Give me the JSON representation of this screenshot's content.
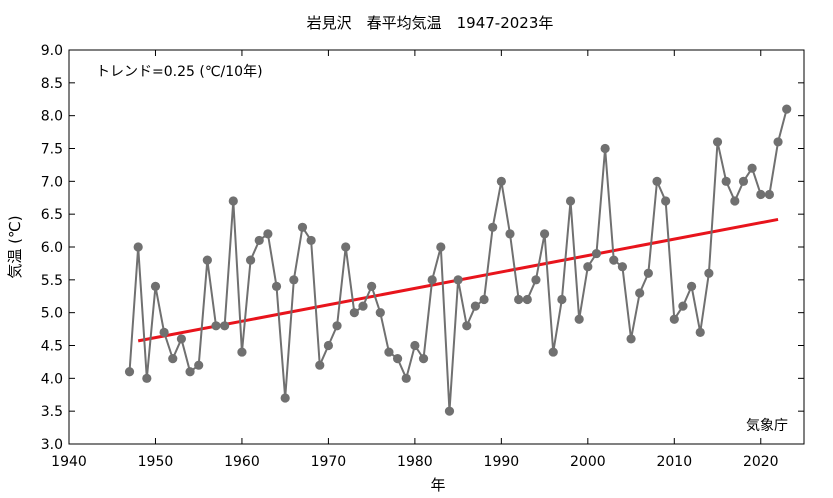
{
  "chart_data": {
    "type": "line",
    "title": "岩見沢　春平均気温　1947-2023年",
    "xlabel": "年",
    "ylabel": "気温 (℃)",
    "xlim": [
      1940,
      2025
    ],
    "ylim": [
      3.0,
      9.0
    ],
    "xticks": [
      1940,
      1950,
      1960,
      1970,
      1980,
      1990,
      2000,
      2010,
      2020
    ],
    "yticks": [
      3.0,
      3.5,
      4.0,
      4.5,
      5.0,
      5.5,
      6.0,
      6.5,
      7.0,
      7.5,
      8.0,
      8.5,
      9.0
    ],
    "grid": false,
    "annotations": {
      "trend_label": "トレンド=0.25 (℃/10年)",
      "credit": "気象庁"
    },
    "colors": {
      "series": "#707070",
      "trend": "#e8141c"
    },
    "series": {
      "x": [
        1947,
        1948,
        1949,
        1950,
        1951,
        1952,
        1953,
        1954,
        1955,
        1956,
        1957,
        1958,
        1959,
        1960,
        1961,
        1962,
        1963,
        1964,
        1965,
        1966,
        1967,
        1968,
        1969,
        1970,
        1971,
        1972,
        1973,
        1974,
        1975,
        1976,
        1977,
        1978,
        1979,
        1980,
        1981,
        1982,
        1983,
        1984,
        1985,
        1986,
        1987,
        1988,
        1989,
        1990,
        1991,
        1992,
        1993,
        1994,
        1995,
        1996,
        1997,
        1998,
        1999,
        2000,
        2001,
        2002,
        2003,
        2004,
        2005,
        2006,
        2007,
        2008,
        2009,
        2010,
        2011,
        2012,
        2013,
        2014,
        2015,
        2016,
        2017,
        2018,
        2019,
        2020,
        2021,
        2022,
        2023
      ],
      "values": [
        4.1,
        6.0,
        4.0,
        5.4,
        4.7,
        4.3,
        4.6,
        4.1,
        4.2,
        5.8,
        4.8,
        4.8,
        6.7,
        4.4,
        5.8,
        6.1,
        6.2,
        5.4,
        3.7,
        5.5,
        6.3,
        6.1,
        4.2,
        4.5,
        4.8,
        6.0,
        5.0,
        5.1,
        5.4,
        5.0,
        4.4,
        4.3,
        4.0,
        4.5,
        4.3,
        5.5,
        6.0,
        3.5,
        5.5,
        4.8,
        5.1,
        5.2,
        6.3,
        7.0,
        6.2,
        5.2,
        5.2,
        5.5,
        6.2,
        4.4,
        5.2,
        6.7,
        4.9,
        5.7,
        5.9,
        7.5,
        5.8,
        5.7,
        4.6,
        5.3,
        5.6,
        7.0,
        6.7,
        4.9,
        5.1,
        5.4,
        4.7,
        5.6,
        7.6,
        7.0,
        6.7,
        7.0,
        7.2,
        6.8,
        6.8,
        7.6,
        8.1
      ]
    },
    "trend": {
      "x": [
        1948,
        2022
      ],
      "values": [
        4.57,
        6.42
      ]
    }
  }
}
